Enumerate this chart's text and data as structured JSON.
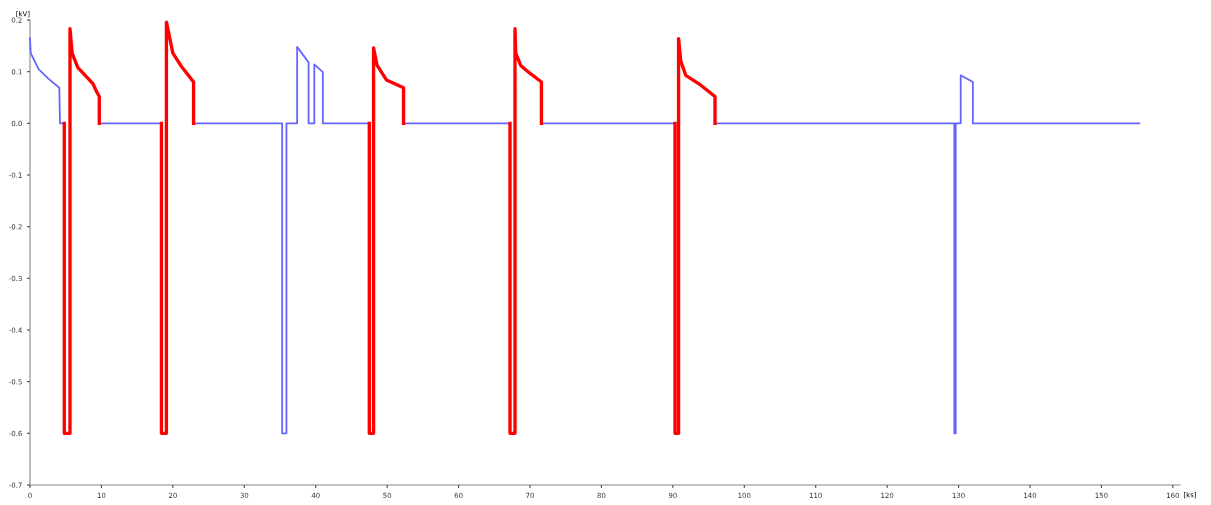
{
  "chart_data": {
    "type": "line",
    "ylabel": "[kV]",
    "xlabel": "[ks]",
    "xlim": [
      0,
      161
    ],
    "xticks": [
      0,
      10,
      20,
      30,
      40,
      50,
      60,
      70,
      80,
      90,
      100,
      110,
      120,
      130,
      140,
      150,
      160
    ],
    "ylim": [
      -0.7,
      0.2
    ],
    "yticks": [
      {
        "value": 0.2,
        "label": "0.2"
      },
      {
        "value": 0.1,
        "label": "0.1"
      },
      {
        "value": 0.0,
        "label": "0.0"
      },
      {
        "value": -0.1,
        "label": "-0.1"
      },
      {
        "value": -0.2,
        "label": "-0.2"
      },
      {
        "value": -0.3,
        "label": "-0.3"
      },
      {
        "value": -0.4,
        "label": "-0.4"
      },
      {
        "value": -0.5,
        "label": "-0.5"
      },
      {
        "value": -0.6,
        "label": "-0.6"
      },
      {
        "value": -0.7,
        "label": "-0.7"
      }
    ],
    "grid": false,
    "legend": false,
    "marker": "none",
    "line_style": "solid",
    "series": [
      {
        "color": "#6666ff",
        "x": [
          0,
          0.1,
          1.2,
          2.6,
          4.1,
          4.2,
          4.8,
          null,
          9.7,
          18.4,
          null,
          22.9,
          35.3,
          35.3,
          35.9,
          35.9,
          37.4,
          37.4,
          39.0,
          39.0,
          39.8,
          39.8,
          41.0,
          41.0,
          47.5,
          null,
          52.3,
          67.2,
          null,
          71.6,
          90.3,
          null,
          95.9,
          129.4,
          129.4,
          129.6,
          129.6,
          130.3,
          130.3,
          132.0,
          132.0,
          155.3
        ],
        "values": [
          0.165,
          0.136,
          0.105,
          0.086,
          0.069,
          0.0,
          0.0,
          null,
          0.0,
          0.0,
          null,
          0.0,
          0.0,
          -0.6,
          -0.6,
          0.0,
          0.0,
          0.148,
          0.118,
          0.0,
          0.0,
          0.114,
          0.099,
          0.0,
          0.0,
          null,
          0.0,
          0.0,
          null,
          0.0,
          0.0,
          null,
          0.0,
          0.0,
          -0.6,
          -0.6,
          0.0,
          0.0,
          0.093,
          0.08,
          0.0,
          0.0
        ]
      },
      {
        "color": "#ff0000",
        "x": [
          4.8,
          4.8,
          5.6,
          5.6,
          5.9,
          6.7,
          8.8,
          9.3,
          9.7,
          9.7,
          null,
          18.4,
          18.4,
          19.1,
          19.1,
          20.0,
          21.1,
          22.9,
          22.9,
          null,
          47.5,
          47.5,
          48.1,
          48.1,
          48.6,
          49.9,
          52.3,
          52.3,
          null,
          67.2,
          67.2,
          67.9,
          67.9,
          68.0,
          68.7,
          69.8,
          71.6,
          71.6,
          null,
          90.3,
          90.3,
          90.8,
          90.8,
          91.1,
          91.8,
          93.6,
          95.9,
          95.9
        ],
        "values": [
          0.0,
          -0.6,
          -0.6,
          0.183,
          0.136,
          0.108,
          0.077,
          0.062,
          0.052,
          0.0,
          null,
          0.0,
          -0.6,
          -0.6,
          0.196,
          0.136,
          0.112,
          0.08,
          0.0,
          null,
          0.0,
          -0.6,
          -0.6,
          0.146,
          0.112,
          0.084,
          0.069,
          0.0,
          null,
          0.0,
          -0.6,
          -0.6,
          0.183,
          0.136,
          0.112,
          0.099,
          0.08,
          0.0,
          null,
          0.0,
          -0.6,
          -0.6,
          0.164,
          0.121,
          0.093,
          0.077,
          0.052,
          0.0
        ]
      }
    ]
  }
}
